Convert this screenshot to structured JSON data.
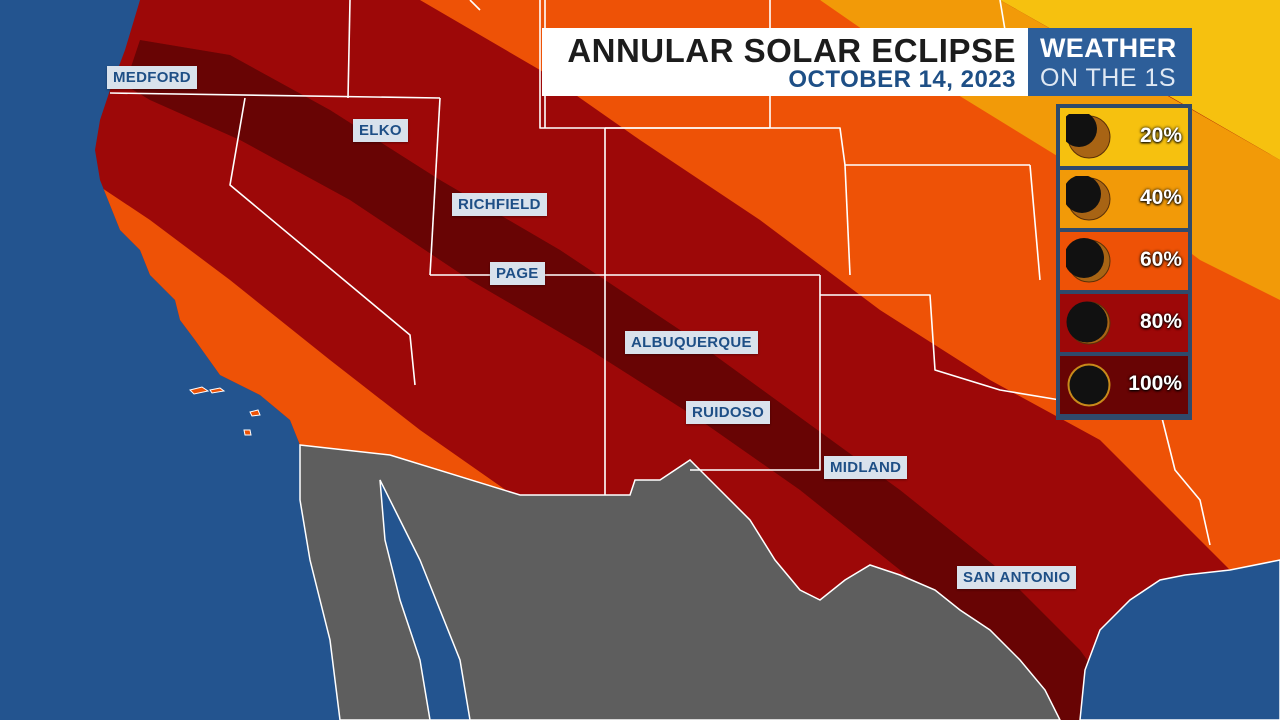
{
  "title": {
    "main": "ANNULAR SOLAR ECLIPSE",
    "date": "OCTOBER 14, 2023"
  },
  "brand": {
    "line1": "WEATHER",
    "line2": "ON THE 1S"
  },
  "cities": [
    "MEDFORD",
    "ELKO",
    "RICHFIELD",
    "PAGE",
    "ALBUQUERQUE",
    "RUIDOSO",
    "MIDLAND",
    "SAN ANTONIO"
  ],
  "legend": [
    {
      "label": "20%",
      "color": "#f6c10f"
    },
    {
      "label": "40%",
      "color": "#f29a08"
    },
    {
      "label": "60%",
      "color": "#ee5206"
    },
    {
      "label": "80%",
      "color": "#9d0808"
    },
    {
      "label": "100%",
      "color": "#680404"
    }
  ],
  "colors": {
    "ocean": "#23548f",
    "mexico": "#5e5e5e",
    "path_of_annularity": "#680404",
    "title_blue": "#1e4f86",
    "brand_blue": "#2d5e99"
  }
}
